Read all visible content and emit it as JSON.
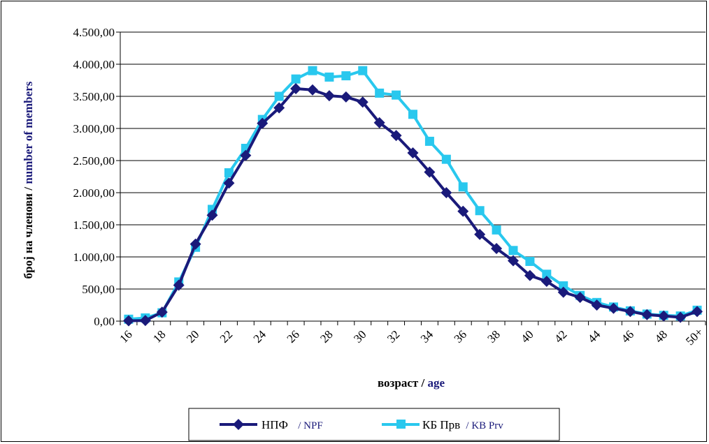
{
  "chart_data": {
    "type": "line",
    "xlabel_main": "возраст / ",
    "xlabel_en": "age",
    "ylabel_main": "број на членови / ",
    "ylabel_en": "number of members",
    "categories": [
      "16",
      "17",
      "18",
      "19",
      "20",
      "21",
      "22",
      "23",
      "24",
      "25",
      "26",
      "27",
      "28",
      "29",
      "30",
      "31",
      "32",
      "33",
      "34",
      "35",
      "36",
      "37",
      "38",
      "39",
      "40",
      "41",
      "42",
      "43",
      "44",
      "45",
      "46",
      "47",
      "48",
      "49",
      "50+"
    ],
    "x_tick_labels": [
      "16",
      "18",
      "20",
      "22",
      "24",
      "26",
      "28",
      "30",
      "32",
      "34",
      "36",
      "38",
      "40",
      "42",
      "44",
      "46",
      "48",
      "50+"
    ],
    "y_ticks": [
      "0,00",
      "500,00",
      "1.000,00",
      "1.500,00",
      "2.000,00",
      "2.500,00",
      "3.000,00",
      "3.500,00",
      "4.000,00",
      "4.500,00"
    ],
    "ylim": [
      0,
      4500
    ],
    "grid": true,
    "legend_position": "bottom",
    "series": [
      {
        "name": "НПФ",
        "name_en": "/ NPF",
        "color": "#1a1a7a",
        "marker": "diamond",
        "values": [
          5,
          10,
          140,
          560,
          1200,
          1650,
          2150,
          2580,
          3080,
          3320,
          3620,
          3600,
          3510,
          3490,
          3410,
          3090,
          2890,
          2620,
          2320,
          2000,
          1710,
          1350,
          1130,
          940,
          710,
          620,
          450,
          370,
          250,
          200,
          150,
          100,
          80,
          60,
          150
        ]
      },
      {
        "name": "КБ Прв",
        "name_en": "/ KB Prv",
        "color": "#29c8ee",
        "marker": "square",
        "values": [
          30,
          50,
          130,
          610,
          1150,
          1740,
          2310,
          2690,
          3140,
          3500,
          3770,
          3900,
          3800,
          3820,
          3900,
          3550,
          3520,
          3220,
          2800,
          2520,
          2090,
          1720,
          1420,
          1100,
          930,
          730,
          550,
          400,
          290,
          220,
          160,
          110,
          90,
          80,
          170
        ]
      }
    ]
  }
}
